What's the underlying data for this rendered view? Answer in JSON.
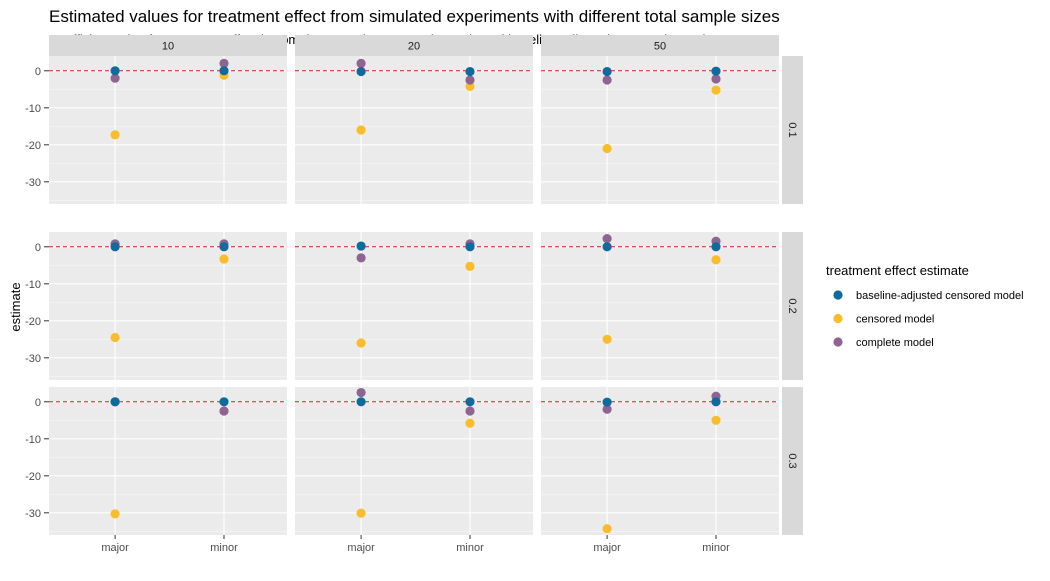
{
  "chart_data": {
    "type": "scatter",
    "title": "Estimated values for treatment effect from simulated experiments with different total sample sizes",
    "subtitle": "Coefficient value for treatment effect in complete sample, censored sample and baseline-adjusted censored sample",
    "ylabel": "estimate",
    "xlabel": "",
    "x_categories": [
      "major",
      "minor"
    ],
    "ylim": [
      -36,
      4
    ],
    "y_ticks": [
      0,
      -10,
      -20,
      -30
    ],
    "reference_line": 0,
    "grid": true,
    "legend_position": "right",
    "legend_title": "treatment effect estimate",
    "column_facets": [
      "10",
      "20",
      "50"
    ],
    "row_facets": [
      "0.1",
      "0.2",
      "0.3"
    ],
    "series": [
      {
        "name": "baseline-adjusted censored model",
        "color": "#0f6b9c"
      },
      {
        "name": "censored model",
        "color": "#f9bd2b"
      },
      {
        "name": "complete model",
        "color": "#8e6592"
      }
    ],
    "panels": [
      {
        "col": "10",
        "row": "0.1",
        "points": {
          "baseline-adjusted censored model": [
            0.0,
            0.0
          ],
          "censored model": [
            -17.3,
            -1.2
          ],
          "complete model": [
            -2.0,
            2.0
          ]
        }
      },
      {
        "col": "20",
        "row": "0.1",
        "points": {
          "baseline-adjusted censored model": [
            -0.2,
            -0.2
          ],
          "censored model": [
            -16.0,
            -4.2
          ],
          "complete model": [
            2.0,
            -2.5
          ]
        }
      },
      {
        "col": "50",
        "row": "0.1",
        "points": {
          "baseline-adjusted censored model": [
            -0.2,
            -0.1
          ],
          "censored model": [
            -21.0,
            -5.2
          ],
          "complete model": [
            -2.5,
            -2.2
          ]
        }
      },
      {
        "col": "10",
        "row": "0.2",
        "points": {
          "baseline-adjusted censored model": [
            0.0,
            0.0
          ],
          "censored model": [
            -24.5,
            -3.3
          ],
          "complete model": [
            0.8,
            0.8
          ]
        }
      },
      {
        "col": "20",
        "row": "0.2",
        "points": {
          "baseline-adjusted censored model": [
            0.2,
            0.0
          ],
          "censored model": [
            -26.0,
            -5.3
          ],
          "complete model": [
            -3.0,
            0.8
          ]
        }
      },
      {
        "col": "50",
        "row": "0.2",
        "points": {
          "baseline-adjusted censored model": [
            0.0,
            0.0
          ],
          "censored model": [
            -25.0,
            -3.5
          ],
          "complete model": [
            2.2,
            1.5
          ]
        }
      },
      {
        "col": "10",
        "row": "0.3",
        "points": {
          "baseline-adjusted censored model": [
            0.0,
            0.0
          ],
          "censored model": [
            -30.3,
            -2.5
          ],
          "complete model": [
            0.0,
            -2.5
          ]
        }
      },
      {
        "col": "20",
        "row": "0.3",
        "points": {
          "baseline-adjusted censored model": [
            0.0,
            0.0
          ],
          "censored model": [
            -30.1,
            -5.8
          ],
          "complete model": [
            2.5,
            -2.5
          ]
        }
      },
      {
        "col": "50",
        "row": "0.3",
        "points": {
          "baseline-adjusted censored model": [
            -0.1,
            0.0
          ],
          "censored model": [
            -34.3,
            -5.0
          ],
          "complete model": [
            -2.0,
            1.5
          ]
        }
      }
    ]
  }
}
